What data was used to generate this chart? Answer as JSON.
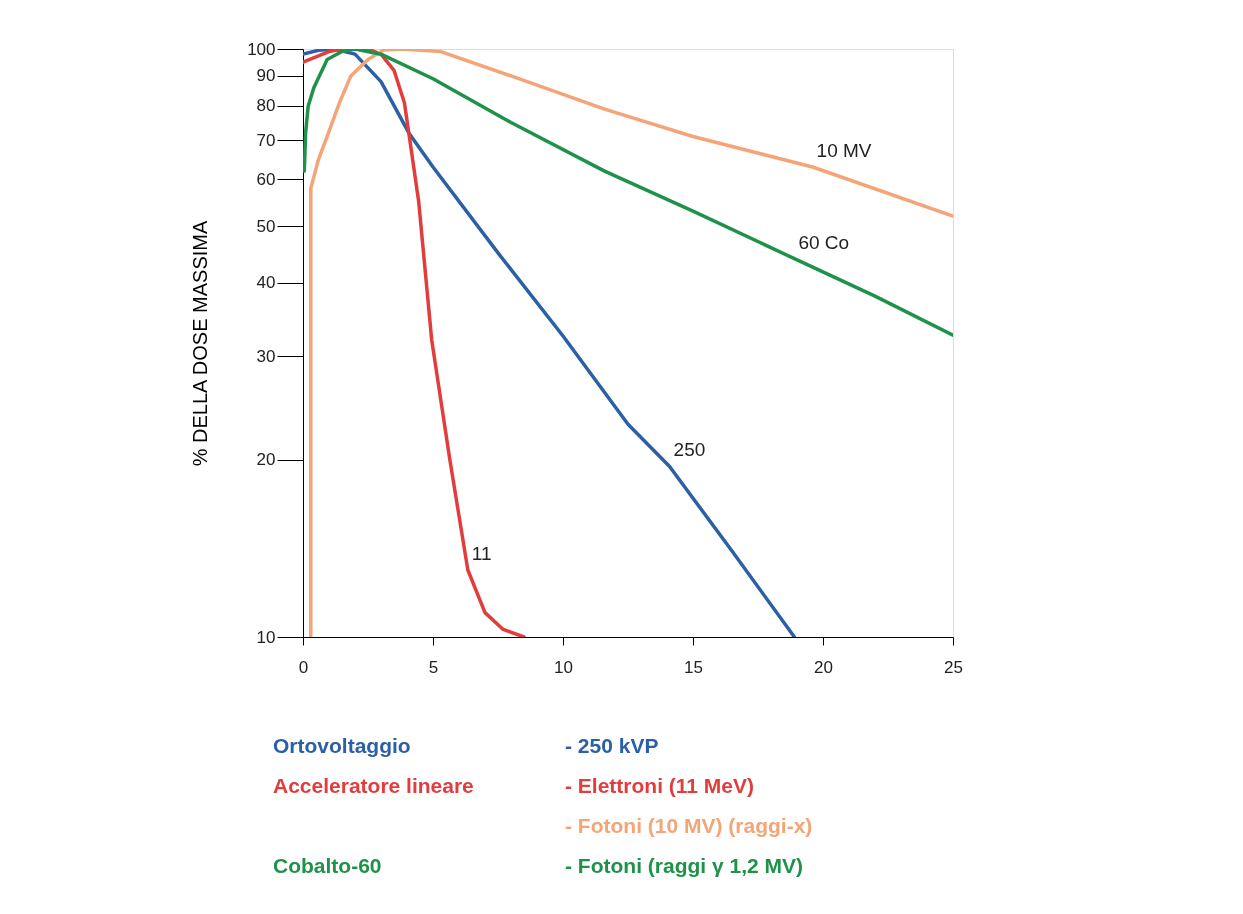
{
  "chart_data": {
    "type": "line",
    "ylabel": "% DELLA DOSE MASSIMA",
    "log": "y",
    "xlim": [
      0,
      25
    ],
    "xticks": [
      0,
      5,
      10,
      15,
      20,
      25
    ],
    "ylim": [
      10,
      100
    ],
    "yticks": [
      10,
      20,
      30,
      40,
      50,
      60,
      70,
      80,
      90,
      100
    ],
    "grid": false,
    "legend": "bottom",
    "line_style": "solid",
    "marker": "none",
    "series": [
      {
        "name": "Ortovoltaggio - 250 kVP",
        "color": "#2b5fa6",
        "x": [
          0,
          0.6,
          1.2,
          2,
          3,
          4.07,
          5,
          7.5,
          10,
          12.5,
          14.1,
          16.5,
          18.9
        ],
        "values": [
          98,
          99.5,
          100,
          98,
          88,
          72,
          63,
          45,
          32.5,
          23,
          19.5,
          14,
          10
        ]
      },
      {
        "name": "Acceleratore lineare - Elettroni (11 MeV)",
        "color": "#e23d3d",
        "x": [
          0,
          0.5,
          1,
          1.5,
          2.5,
          3,
          3.5,
          3.9,
          4.07,
          4.45,
          4.95,
          5.65,
          6.34,
          7,
          7.7,
          8.5
        ],
        "values": [
          95,
          97,
          99,
          100,
          100,
          98,
          92,
          81,
          72,
          55,
          32,
          20,
          13,
          11,
          10.3,
          10
        ]
      },
      {
        "name": "- Fotoni (10 MV) (raggi-x)",
        "color": "#f4a577",
        "x": [
          0.3,
          0.3,
          0.6,
          0.93,
          1.4,
          1.84,
          2.5,
          3.1,
          3.8,
          5.3,
          8,
          11.6,
          15,
          19.6,
          25
        ],
        "values": [
          10,
          58,
          65,
          71,
          81,
          90,
          96,
          99.6,
          100,
          99,
          90,
          79,
          71,
          63,
          52
        ]
      },
      {
        "name": "Cobalto-60 - Fotoni (raggi γ 1,2 MV)",
        "color": "#1f9249",
        "x": [
          0.05,
          0.1,
          0.2,
          0.42,
          0.93,
          1.5,
          2,
          3,
          5,
          8,
          11.6,
          15,
          18.9,
          22,
          25
        ],
        "values": [
          62,
          72,
          80,
          86,
          96,
          99,
          100,
          98,
          89,
          75,
          62,
          53,
          44,
          38,
          32.6
        ]
      }
    ],
    "annotations": [
      {
        "text": "10 MV",
        "x": 19.6,
        "y": 63
      },
      {
        "text": "60 Co",
        "x": 18.9,
        "y": 44
      },
      {
        "text": "250",
        "x": 14.1,
        "y": 19.5
      },
      {
        "text": "11",
        "x": 6.34,
        "y": 13
      }
    ]
  }
}
